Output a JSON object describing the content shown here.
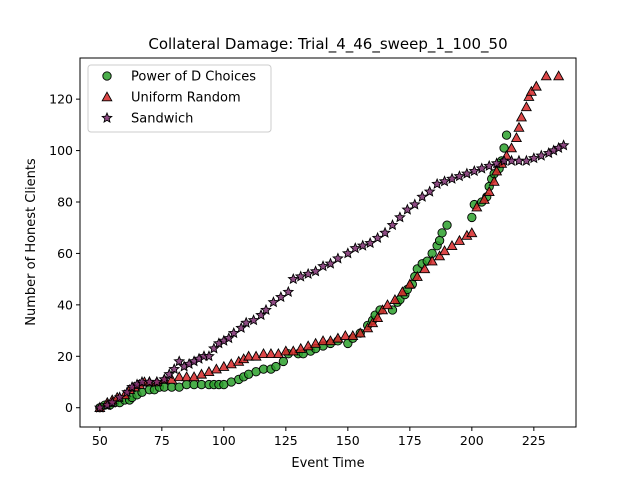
{
  "chart_data": {
    "type": "scatter",
    "title": "Collateral Damage: Trial_4_46_sweep_1_100_50",
    "xlabel": "Event Time",
    "ylabel": "Number of Honest Clients",
    "xlim": [
      42,
      242
    ],
    "ylim": [
      -7.5,
      136
    ],
    "xticks": [
      50,
      75,
      100,
      125,
      150,
      175,
      200,
      225
    ],
    "yticks": [
      0,
      20,
      40,
      60,
      80,
      100,
      120
    ],
    "grid": false,
    "legend_position": "top-left",
    "series": [
      {
        "name": "Power of D Choices",
        "marker": "circle",
        "color": "#2ca02c",
        "points": [
          [
            50,
            0
          ],
          [
            52,
            1
          ],
          [
            54,
            1
          ],
          [
            56,
            2
          ],
          [
            58,
            2
          ],
          [
            60,
            3
          ],
          [
            62,
            3
          ],
          [
            63,
            4
          ],
          [
            65,
            5
          ],
          [
            67,
            6
          ],
          [
            70,
            7
          ],
          [
            72,
            7
          ],
          [
            74,
            8
          ],
          [
            76,
            8
          ],
          [
            79,
            8
          ],
          [
            82,
            8
          ],
          [
            85,
            9
          ],
          [
            88,
            9
          ],
          [
            91,
            9
          ],
          [
            94,
            9
          ],
          [
            96,
            9
          ],
          [
            98,
            9
          ],
          [
            100,
            9
          ],
          [
            103,
            10
          ],
          [
            106,
            11
          ],
          [
            108,
            12
          ],
          [
            110,
            13
          ],
          [
            113,
            14
          ],
          [
            116,
            15
          ],
          [
            119,
            15
          ],
          [
            121,
            16
          ],
          [
            124,
            18
          ],
          [
            126,
            21
          ],
          [
            130,
            21
          ],
          [
            132,
            21
          ],
          [
            135,
            22
          ],
          [
            137,
            23
          ],
          [
            140,
            24
          ],
          [
            143,
            25
          ],
          [
            146,
            26
          ],
          [
            150,
            25
          ],
          [
            152,
            27
          ],
          [
            155,
            29
          ],
          [
            158,
            32
          ],
          [
            160,
            34
          ],
          [
            161,
            36
          ],
          [
            163,
            38
          ],
          [
            168,
            38
          ],
          [
            170,
            41
          ],
          [
            171,
            42
          ],
          [
            173,
            44
          ],
          [
            174,
            46
          ],
          [
            176,
            48
          ],
          [
            177,
            51
          ],
          [
            178,
            54
          ],
          [
            180,
            56
          ],
          [
            182,
            57
          ],
          [
            184,
            60
          ],
          [
            186,
            63
          ],
          [
            187,
            65
          ],
          [
            188,
            68
          ],
          [
            190,
            71
          ],
          [
            200,
            74
          ],
          [
            201,
            79
          ],
          [
            204,
            80
          ],
          [
            206,
            82
          ],
          [
            207,
            86
          ],
          [
            208,
            89
          ],
          [
            209,
            91
          ],
          [
            211,
            93
          ],
          [
            212,
            96
          ],
          [
            213,
            101
          ],
          [
            214,
            106
          ]
        ]
      },
      {
        "name": "Uniform Random",
        "marker": "triangle",
        "color": "#d62728",
        "points": [
          [
            50,
            0
          ],
          [
            53,
            2
          ],
          [
            55,
            3
          ],
          [
            57,
            4
          ],
          [
            60,
            5
          ],
          [
            62,
            7
          ],
          [
            64,
            8
          ],
          [
            66,
            9
          ],
          [
            68,
            10
          ],
          [
            70,
            10
          ],
          [
            73,
            10
          ],
          [
            76,
            11
          ],
          [
            79,
            11
          ],
          [
            82,
            12
          ],
          [
            85,
            12
          ],
          [
            88,
            12
          ],
          [
            91,
            13
          ],
          [
            94,
            14
          ],
          [
            97,
            15
          ],
          [
            100,
            16
          ],
          [
            103,
            17
          ],
          [
            106,
            18
          ],
          [
            108,
            19
          ],
          [
            110,
            20
          ],
          [
            113,
            20
          ],
          [
            116,
            21
          ],
          [
            119,
            21
          ],
          [
            122,
            21
          ],
          [
            125,
            22
          ],
          [
            128,
            22
          ],
          [
            131,
            23
          ],
          [
            134,
            24
          ],
          [
            137,
            25
          ],
          [
            140,
            26
          ],
          [
            143,
            26
          ],
          [
            146,
            27
          ],
          [
            149,
            28
          ],
          [
            152,
            28
          ],
          [
            155,
            29
          ],
          [
            158,
            31
          ],
          [
            160,
            33
          ],
          [
            162,
            35
          ],
          [
            164,
            38
          ],
          [
            166,
            40
          ],
          [
            169,
            42
          ],
          [
            172,
            45
          ],
          [
            175,
            48
          ],
          [
            178,
            51
          ],
          [
            181,
            54
          ],
          [
            184,
            57
          ],
          [
            187,
            59
          ],
          [
            189,
            61
          ],
          [
            192,
            63
          ],
          [
            195,
            65
          ],
          [
            198,
            67
          ],
          [
            200,
            68
          ],
          [
            202,
            78
          ],
          [
            205,
            81
          ],
          [
            207,
            84
          ],
          [
            209,
            88
          ],
          [
            210,
            92
          ],
          [
            212,
            95
          ],
          [
            214,
            98
          ],
          [
            216,
            101
          ],
          [
            218,
            105
          ],
          [
            219,
            109
          ],
          [
            220,
            113
          ],
          [
            222,
            117
          ],
          [
            223,
            121
          ],
          [
            224,
            123
          ],
          [
            226,
            125
          ],
          [
            230,
            129
          ],
          [
            235,
            129
          ]
        ]
      },
      {
        "name": "Sandwich",
        "marker": "star",
        "color": "#7b2d6e",
        "points": [
          [
            50,
            0
          ],
          [
            53,
            1
          ],
          [
            55,
            2
          ],
          [
            58,
            4
          ],
          [
            61,
            6
          ],
          [
            63,
            8
          ],
          [
            65,
            9
          ],
          [
            67,
            10
          ],
          [
            70,
            10
          ],
          [
            73,
            10
          ],
          [
            76,
            11
          ],
          [
            78,
            13
          ],
          [
            80,
            15
          ],
          [
            82,
            18
          ],
          [
            84,
            16
          ],
          [
            86,
            17
          ],
          [
            88,
            18
          ],
          [
            90,
            19
          ],
          [
            92,
            20
          ],
          [
            94,
            20
          ],
          [
            96,
            23
          ],
          [
            98,
            25
          ],
          [
            100,
            26
          ],
          [
            102,
            27
          ],
          [
            104,
            29
          ],
          [
            107,
            31
          ],
          [
            109,
            33
          ],
          [
            112,
            34
          ],
          [
            115,
            36
          ],
          [
            117,
            38
          ],
          [
            120,
            41
          ],
          [
            123,
            43
          ],
          [
            126,
            45
          ],
          [
            128,
            50
          ],
          [
            131,
            51
          ],
          [
            134,
            52
          ],
          [
            137,
            53
          ],
          [
            140,
            55
          ],
          [
            143,
            56
          ],
          [
            146,
            58
          ],
          [
            150,
            60
          ],
          [
            153,
            62
          ],
          [
            156,
            63
          ],
          [
            159,
            64
          ],
          [
            162,
            66
          ],
          [
            165,
            68
          ],
          [
            168,
            71
          ],
          [
            171,
            74
          ],
          [
            174,
            77
          ],
          [
            177,
            79
          ],
          [
            180,
            82
          ],
          [
            183,
            84
          ],
          [
            186,
            87
          ],
          [
            189,
            88
          ],
          [
            192,
            89
          ],
          [
            195,
            90
          ],
          [
            198,
            91
          ],
          [
            201,
            92
          ],
          [
            204,
            93
          ],
          [
            207,
            94
          ],
          [
            210,
            95
          ],
          [
            213,
            96
          ],
          [
            216,
            96
          ],
          [
            219,
            96
          ],
          [
            222,
            96
          ],
          [
            225,
            97
          ],
          [
            228,
            98
          ],
          [
            231,
            99
          ],
          [
            233,
            100
          ],
          [
            235,
            101
          ],
          [
            237,
            102
          ]
        ]
      }
    ]
  }
}
